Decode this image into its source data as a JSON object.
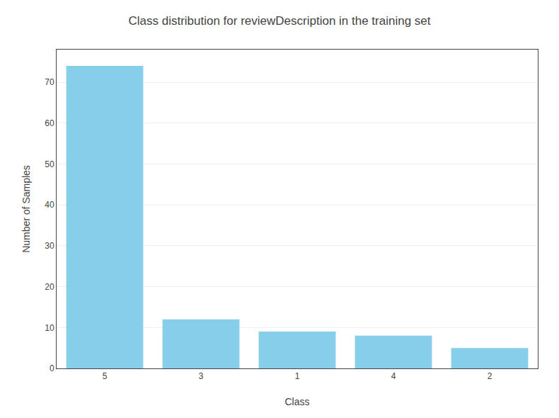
{
  "chart_data": {
    "type": "bar",
    "title": "Class distribution for reviewDescription in the training set",
    "xlabel": "Class",
    "ylabel": "Number of Samples",
    "categories": [
      "5",
      "3",
      "1",
      "4",
      "2"
    ],
    "values": [
      74,
      12,
      9,
      8,
      5
    ],
    "color": "#87CEEB",
    "ylim": [
      0,
      78
    ],
    "yticks": [
      0,
      10,
      20,
      30,
      40,
      50,
      60,
      70
    ],
    "grid": true
  }
}
